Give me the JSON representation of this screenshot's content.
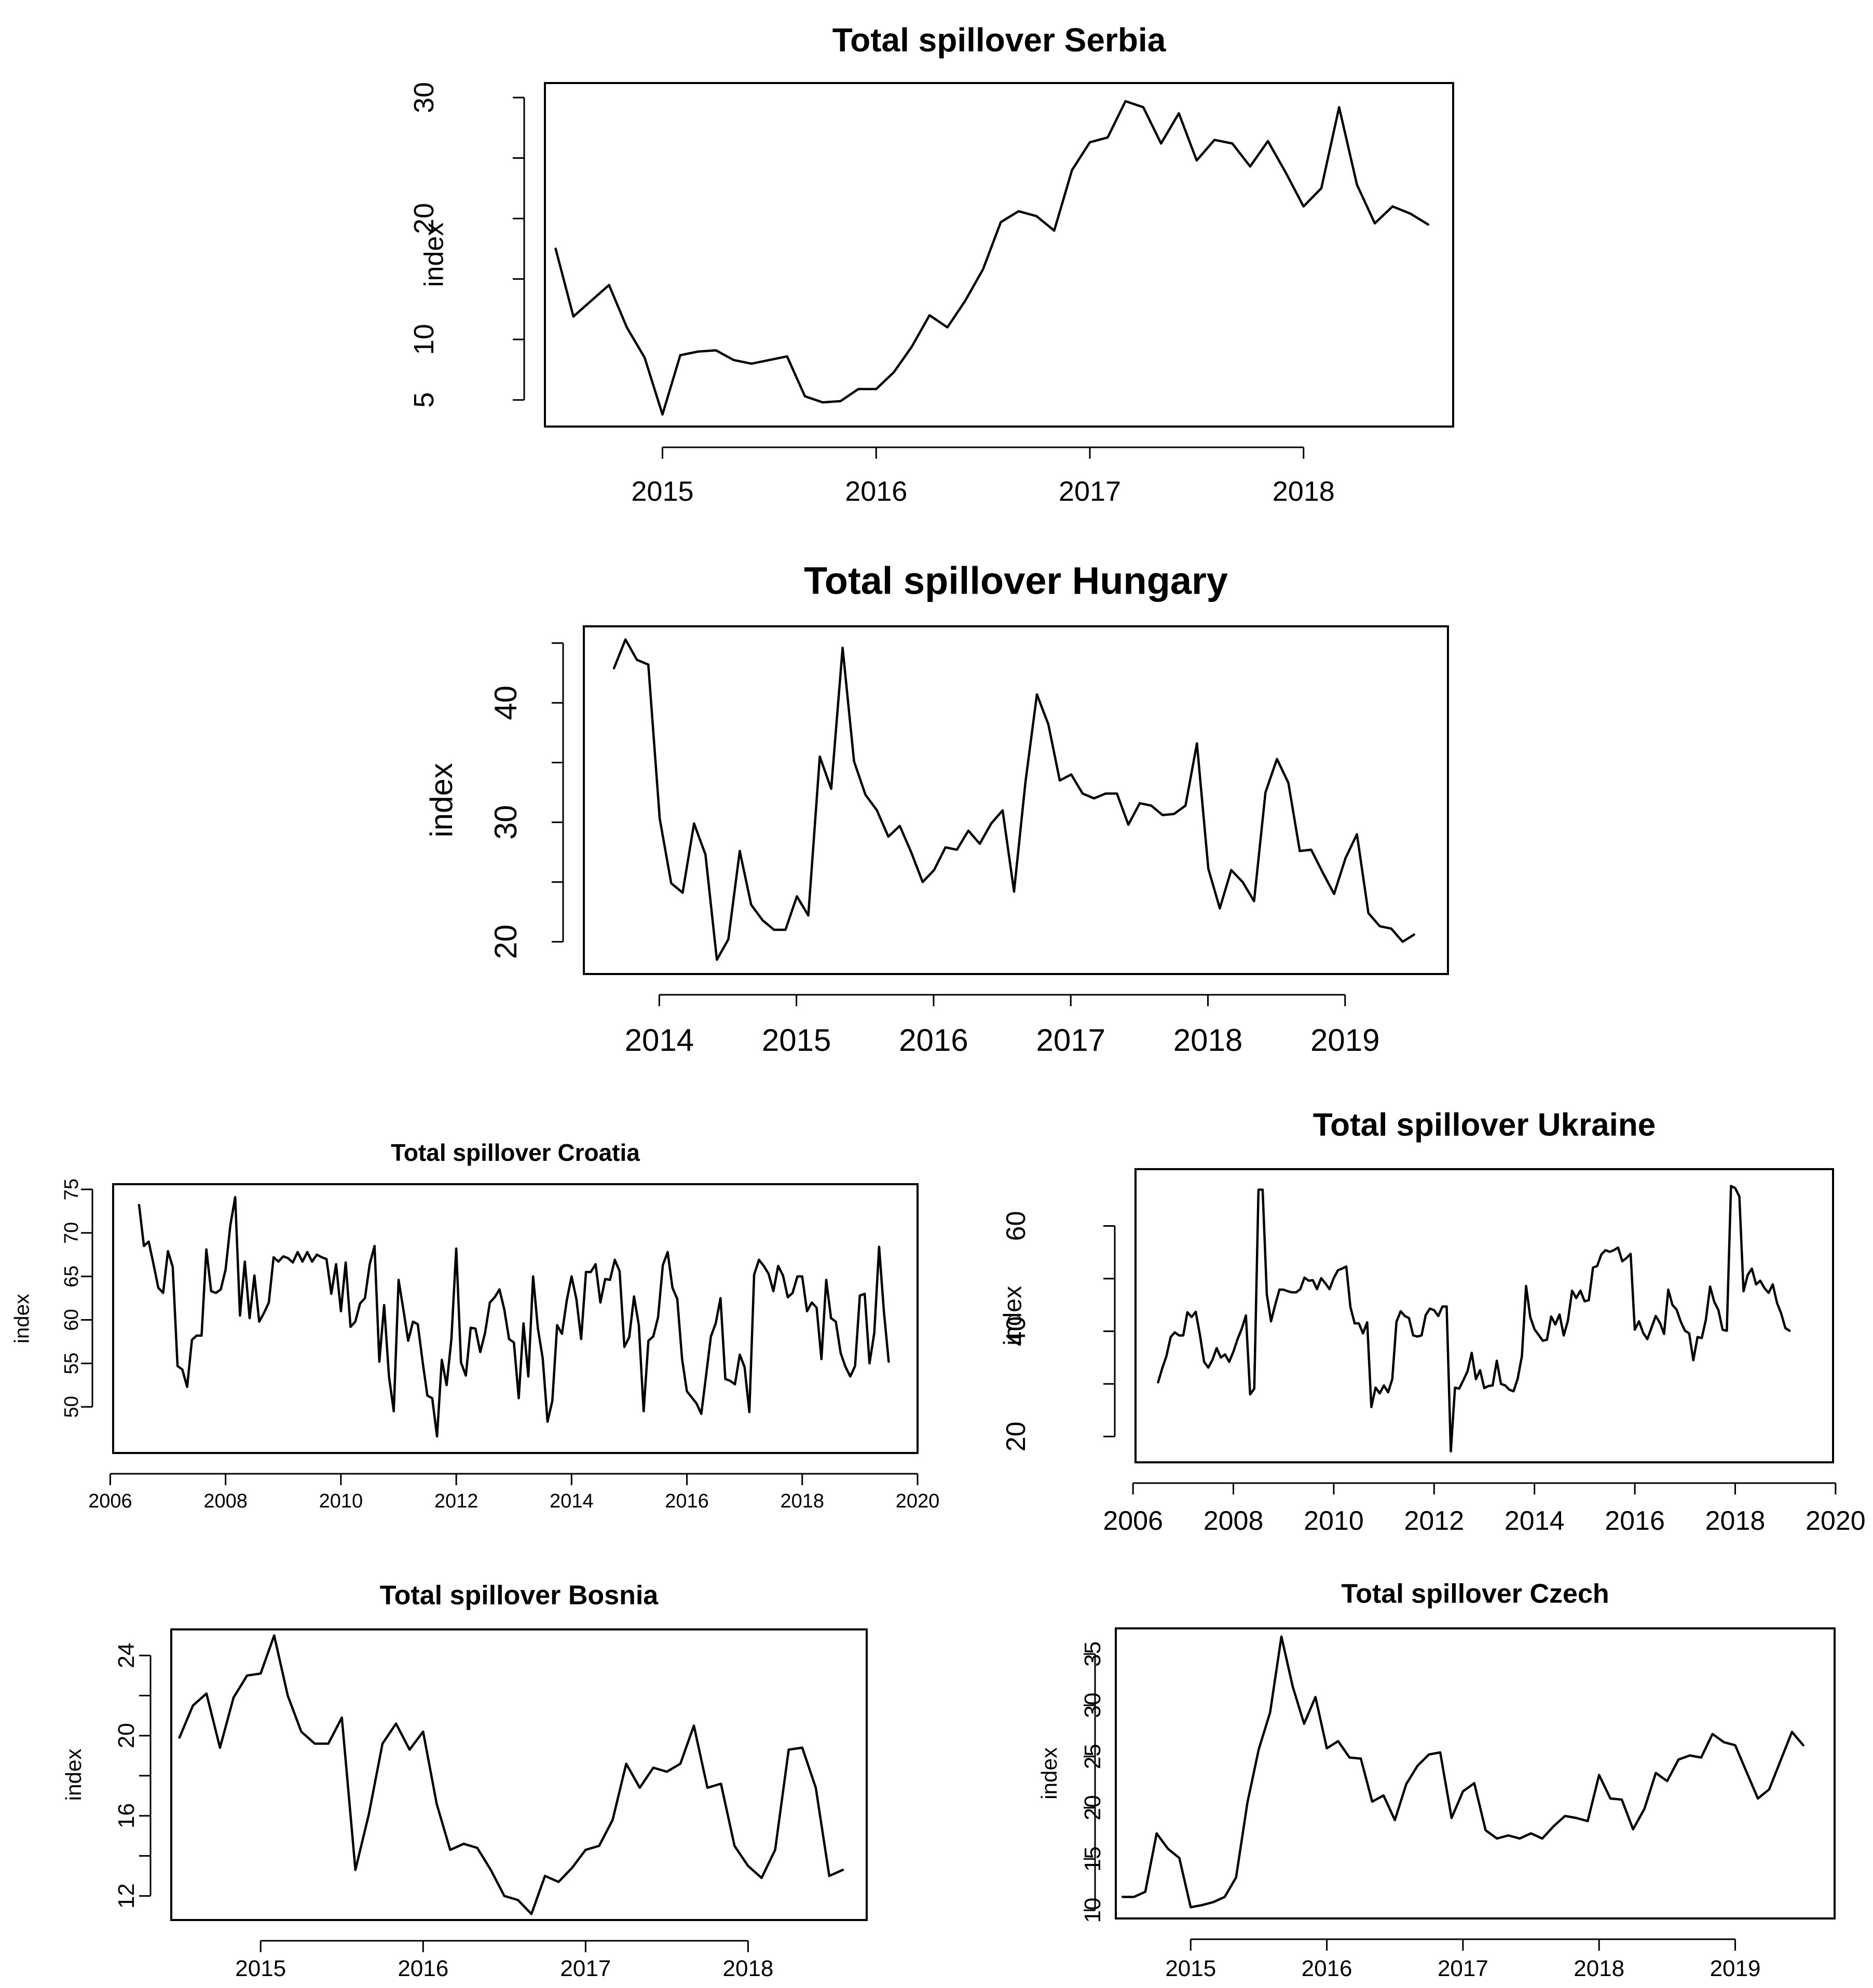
{
  "chart_data": [
    {
      "id": "serbia",
      "type": "line",
      "title": "Total spillover Serbia",
      "xlabel": "",
      "ylabel": "index",
      "xlim": [
        2014.45,
        2018.7
      ],
      "ylim": [
        2.8,
        31.2
      ],
      "xticks": [
        2015,
        2016,
        2017,
        2018
      ],
      "xtick_labels": [
        "2015",
        "2016",
        "2017",
        "2018"
      ],
      "yticks": [
        5,
        10,
        15,
        20,
        25,
        30
      ],
      "ytick_labels": [
        "5",
        "10",
        "",
        "20",
        "",
        "30"
      ],
      "x_start": 2014.5,
      "x_step": 0.08333,
      "values": [
        17.5,
        11.9,
        13.2,
        14.5,
        11.0,
        8.5,
        3.8,
        8.7,
        9.0,
        9.1,
        8.3,
        8.0,
        8.3,
        8.6,
        5.3,
        4.8,
        4.9,
        5.9,
        5.9,
        7.3,
        9.4,
        12.0,
        11.0,
        13.2,
        15.8,
        19.7,
        20.6,
        20.2,
        19.0,
        24.0,
        26.3,
        26.7,
        29.7,
        29.2,
        26.2,
        28.7,
        24.8,
        26.5,
        26.2,
        24.3,
        26.4,
        23.8,
        21.0,
        22.5,
        29.2,
        22.8,
        19.6,
        21.0,
        20.4,
        19.5
      ]
    },
    {
      "id": "hungary",
      "type": "line",
      "title": "Total spillover Hungary",
      "xlabel": "",
      "ylabel": "index",
      "xlim": [
        2013.45,
        2019.75
      ],
      "ylim": [
        17.3,
        46.4
      ],
      "xticks": [
        2014,
        2015,
        2016,
        2017,
        2018,
        2019
      ],
      "xtick_labels": [
        "2014",
        "2015",
        "2016",
        "2017",
        "2018",
        "2019"
      ],
      "yticks": [
        20,
        25,
        30,
        35,
        40,
        45
      ],
      "ytick_labels": [
        "20",
        "",
        "30",
        "",
        "40",
        ""
      ],
      "x_start": 2013.67,
      "x_step": 0.08333,
      "values": [
        42.9,
        45.3,
        43.6,
        43.2,
        30.3,
        24.9,
        24.1,
        29.9,
        27.3,
        18.5,
        20.2,
        27.6,
        23.1,
        21.8,
        21.0,
        21.0,
        23.8,
        22.2,
        35.5,
        32.8,
        44.6,
        35.1,
        32.3,
        31.0,
        28.8,
        29.7,
        27.5,
        25.0,
        26.0,
        27.9,
        27.7,
        29.3,
        28.2,
        29.9,
        31.0,
        24.2,
        33.4,
        40.7,
        38.2,
        33.5,
        34.0,
        32.4,
        32.0,
        32.4,
        32.4,
        29.8,
        31.6,
        31.4,
        30.6,
        30.7,
        31.4,
        36.6,
        26.1,
        22.8,
        26.0,
        25.0,
        23.4,
        32.5,
        35.3,
        33.3,
        27.6,
        27.7,
        25.8,
        24.0,
        27.0,
        29.0,
        22.4,
        21.3,
        21.1,
        20.0,
        20.6
      ]
    },
    {
      "id": "croatia",
      "type": "line",
      "title": "Total spillover Croatia",
      "xlabel": "",
      "ylabel": "index",
      "xlim": [
        2006.05,
        2020.0
      ],
      "ylim": [
        44.7,
        75.6
      ],
      "xticks": [
        2006,
        2008,
        2010,
        2012,
        2014,
        2016,
        2018,
        2020
      ],
      "xtick_labels": [
        "2006",
        "2008",
        "2010",
        "2012",
        "2014",
        "2016",
        "2018",
        "2020"
      ],
      "yticks": [
        50,
        55,
        60,
        65,
        70,
        75
      ],
      "ytick_labels": [
        "50",
        "55",
        "60",
        "65",
        "70",
        "75"
      ],
      "x_start": 2006.5,
      "x_step": 0.08333,
      "values": [
        73.2,
        68.5,
        69.0,
        66.4,
        63.7,
        63.1,
        67.9,
        66.1,
        54.7,
        54.3,
        52.3,
        57.7,
        58.2,
        58.2,
        68.1,
        63.3,
        63.1,
        63.5,
        65.8,
        70.9,
        74.1,
        60.5,
        66.7,
        60.2,
        65.1,
        59.8,
        60.8,
        62.0,
        67.2,
        66.7,
        67.3,
        67.1,
        66.6,
        67.8,
        66.7,
        67.8,
        66.7,
        67.5,
        67.2,
        67.0,
        63.0,
        66.4,
        61.0,
        66.6,
        59.2,
        59.8,
        61.9,
        62.5,
        66.4,
        68.5,
        55.2,
        61.7,
        53.5,
        49.5,
        64.6,
        61.2,
        57.6,
        59.8,
        59.5,
        55.2,
        51.3,
        51.0,
        46.6,
        55.4,
        52.5,
        57.8,
        68.2,
        55.1,
        53.6,
        59.1,
        59.0,
        56.3,
        58.5,
        62.0,
        62.6,
        63.5,
        61.2,
        57.8,
        57.4,
        51.0,
        59.6,
        53.5,
        65.0,
        59.0,
        55.6,
        48.3,
        50.7,
        59.4,
        58.4,
        62.2,
        65.0,
        62.4,
        57.8,
        65.5,
        65.5,
        66.4,
        62.0,
        64.7,
        64.6,
        66.9,
        65.6,
        56.9,
        58.0,
        62.7,
        59.4,
        49.5,
        57.6,
        58.1,
        60.3,
        66.3,
        67.8,
        63.7,
        62.4,
        55.5,
        51.8,
        51.1,
        50.4,
        49.2,
        53.6,
        58.1,
        59.6,
        62.5,
        53.2,
        53.0,
        52.6,
        56.0,
        54.6,
        49.4,
        65.2,
        66.9,
        66.2,
        65.3,
        63.3,
        66.2,
        65.1,
        62.6,
        63.1,
        65.0,
        65.0,
        61.0,
        62.0,
        61.4,
        55.5,
        64.6,
        60.2,
        59.8,
        56.2,
        54.6,
        53.5,
        54.7,
        62.8,
        63.0,
        55.0,
        58.5,
        68.4,
        61.0,
        55.2
      ]
    },
    {
      "id": "ukraine",
      "type": "line",
      "title": "Total spillover Ukraine",
      "xlabel": "",
      "ylabel": "index",
      "xlim": [
        2006.05,
        2019.95
      ],
      "ylim": [
        15.1,
        70.8
      ],
      "xticks": [
        2006,
        2008,
        2010,
        2012,
        2014,
        2016,
        2018,
        2020
      ],
      "xtick_labels": [
        "2006",
        "2008",
        "2010",
        "2012",
        "2014",
        "2016",
        "2018",
        "2020"
      ],
      "yticks": [
        20,
        30,
        40,
        50,
        60
      ],
      "ytick_labels": [
        "20",
        "",
        "40",
        "",
        "60"
      ],
      "x_start": 2006.5,
      "x_step": 0.08333,
      "values": [
        30.3,
        33.0,
        35.3,
        38.9,
        39.8,
        39.2,
        39.2,
        43.6,
        42.7,
        43.7,
        39.3,
        34.2,
        33.1,
        34.6,
        36.8,
        35.0,
        35.6,
        34.2,
        36.1,
        38.5,
        40.5,
        43.0,
        28.0,
        29.1,
        66.9,
        66.9,
        47.0,
        41.9,
        45.0,
        47.9,
        47.9,
        47.6,
        47.4,
        47.4,
        48.0,
        50.2,
        49.6,
        49.7,
        48.0,
        50.1,
        49.1,
        48.0,
        50.1,
        51.6,
        51.9,
        52.3,
        44.6,
        41.5,
        41.5,
        39.6,
        41.7,
        25.6,
        29.3,
        28.2,
        29.7,
        28.4,
        30.9,
        41.8,
        43.8,
        42.9,
        42.5,
        39.2,
        39.0,
        39.2,
        43.1,
        44.3,
        44.0,
        42.9,
        44.7,
        44.7,
        17.2,
        29.3,
        29.1,
        30.7,
        32.4,
        35.9,
        30.9,
        32.6,
        29.2,
        29.6,
        29.7,
        34.4,
        30.0,
        29.7,
        28.9,
        28.6,
        31.0,
        35.3,
        48.6,
        42.7,
        40.4,
        39.3,
        38.2,
        38.4,
        42.8,
        41.3,
        43.2,
        39.2,
        42.0,
        47.7,
        46.3,
        47.7,
        45.7,
        45.9,
        52.1,
        52.4,
        54.6,
        55.4,
        55.1,
        55.4,
        55.9,
        53.3,
        53.9,
        54.7,
        40.3,
        41.9,
        39.7,
        38.5,
        40.7,
        42.9,
        41.6,
        39.5,
        47.9,
        45.0,
        44.1,
        41.8,
        40.1,
        39.6,
        34.5,
        38.9,
        38.7,
        42.2,
        48.5,
        45.6,
        44.0,
        40.3,
        40.1,
        67.6,
        67.2,
        65.6,
        47.6,
        50.7,
        51.9,
        48.9,
        49.6,
        48.2,
        47.3,
        48.9,
        45.4,
        43.4,
        40.6,
        40.1
      ]
    },
    {
      "id": "bosnia",
      "type": "line",
      "title": "Total spillover Bosnia",
      "xlabel": "",
      "ylabel": "index",
      "xlim": [
        2014.45,
        2018.73
      ],
      "ylim": [
        10.8,
        25.3
      ],
      "xticks": [
        2015,
        2016,
        2017,
        2018
      ],
      "xtick_labels": [
        "2015",
        "2016",
        "2017",
        "2018"
      ],
      "yticks": [
        12,
        14,
        16,
        18,
        20,
        22,
        24
      ],
      "ytick_labels": [
        "12",
        "",
        "16",
        "",
        "20",
        "",
        "24"
      ],
      "x_start": 2014.5,
      "x_step": 0.08333,
      "values": [
        19.9,
        21.5,
        22.1,
        19.4,
        21.9,
        23.0,
        23.1,
        25.0,
        22.0,
        20.2,
        19.6,
        19.6,
        20.9,
        13.3,
        16.1,
        19.6,
        20.6,
        19.3,
        20.2,
        16.6,
        14.3,
        14.6,
        14.4,
        13.3,
        12.0,
        11.8,
        11.1,
        13.0,
        12.7,
        13.4,
        14.3,
        14.5,
        15.8,
        18.6,
        17.4,
        18.4,
        18.2,
        18.6,
        20.5,
        17.4,
        17.6,
        14.5,
        13.5,
        12.9,
        14.3,
        19.3,
        19.4,
        17.4,
        13.0,
        13.3
      ]
    },
    {
      "id": "czech",
      "type": "line",
      "title": "Total spillover Czech",
      "xlabel": "",
      "ylabel": "index",
      "xlim": [
        2014.45,
        2019.73
      ],
      "ylim": [
        9.2,
        37.5
      ],
      "xticks": [
        2015,
        2016,
        2017,
        2018,
        2019
      ],
      "xtick_labels": [
        "2015",
        "2016",
        "2017",
        "2018",
        "2019"
      ],
      "yticks": [
        10,
        15,
        20,
        25,
        30,
        35
      ],
      "ytick_labels": [
        "10",
        "15",
        "20",
        "25",
        "30",
        "35"
      ],
      "x_start": 2014.5,
      "x_step": 0.08333,
      "values": [
        11.3,
        11.3,
        11.8,
        17.5,
        16.0,
        15.1,
        10.3,
        10.5,
        10.8,
        11.3,
        13.2,
        20.5,
        25.7,
        29.3,
        36.7,
        31.8,
        28.2,
        30.8,
        25.8,
        26.5,
        24.9,
        24.8,
        20.6,
        21.2,
        18.8,
        22.3,
        24.1,
        25.2,
        25.4,
        19.0,
        21.6,
        22.4,
        17.8,
        17.0,
        17.3,
        17.0,
        17.5,
        17.0,
        18.2,
        19.2,
        19.0,
        18.7,
        23.2,
        20.9,
        20.8,
        17.9,
        19.9,
        23.4,
        22.6,
        24.7,
        25.1,
        24.9,
        27.2,
        26.4,
        26.1,
        23.5,
        20.9,
        21.8,
        24.6,
        27.4,
        26.1
      ]
    }
  ]
}
